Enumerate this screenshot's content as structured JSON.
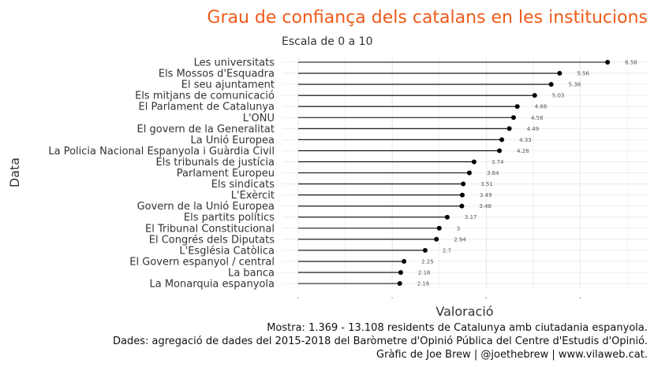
{
  "colors": {
    "title": "#f05a1a",
    "stem": "#000000",
    "point": "#000000",
    "grid": "#e8e8e8",
    "text": "#333333"
  },
  "chart_data": {
    "type": "lollipop",
    "orientation": "horizontal",
    "title": "Grau de confiança dels catalans en les institucions",
    "subtitle": "Escala de 0 a 10",
    "xlabel": "Valoració",
    "ylabel": "Data",
    "xlim": [
      0,
      7
    ],
    "grid": true,
    "categories": [
      "Les universitats",
      "Els Mossos d'Esquadra",
      "El seu ajuntament",
      "Els mitjans de comunicació",
      "El Parlament de Catalunya",
      "L'ONU",
      "El govern de la Generalitat",
      "La Unió Europea",
      "La Policia Nacional Espanyola i Guàrdia Civil",
      "Els tribunals de justícia",
      "Parlament Europeu",
      "Els sindicats",
      "L'Exèrcit",
      "Govern de la Unió Europea",
      "Els partits polítics",
      "El Tribunal Constitucional",
      "El Congrés dels Diputats",
      "L'Església Catòlica",
      "El Govern espanyol / central",
      "La banca",
      "La Monarquia espanyola"
    ],
    "values": [
      6.58,
      5.56,
      5.38,
      5.03,
      4.66,
      4.58,
      4.49,
      4.33,
      4.28,
      3.74,
      3.64,
      3.51,
      3.49,
      3.48,
      3.17,
      3,
      2.94,
      2.7,
      2.25,
      2.18,
      2.16
    ],
    "value_labels": [
      "6.58",
      "5.56",
      "5.38",
      "5.03",
      "4.66",
      "4.58",
      "4.49",
      "4.33",
      "4.28",
      "3.74",
      "3.64",
      "3.51",
      "3.49",
      "3.48",
      "3.17",
      "3",
      "2.94",
      "2.7",
      "2.25",
      "2.18",
      "2.16"
    ],
    "caption": [
      "Mostra: 1.369 - 13.108 residents de Catalunya amb ciutadania espanyola.",
      "Dades: agregació de dades del 2015-2018 del Baròmetre d'Opinió Pública del Centre d'Estudis d'Opinió.",
      "Gràfic de Joe Brew | @joethebrew | www.vilaweb.cat."
    ]
  }
}
